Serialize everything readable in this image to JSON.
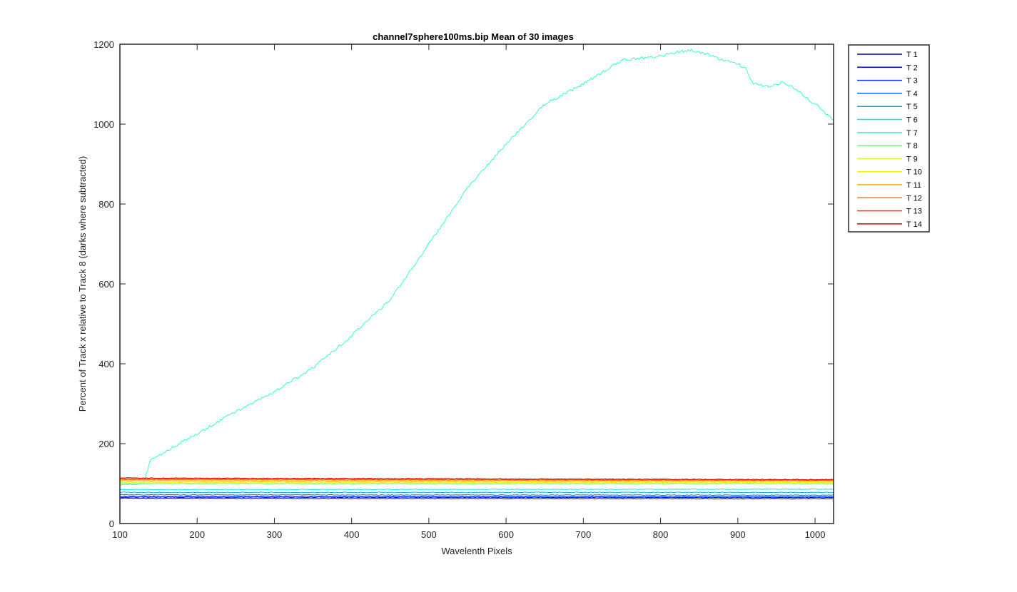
{
  "chart_data": {
    "type": "line",
    "title": "channel7sphere100ms.bip  Mean of 30 images",
    "xlabel": "Wavelenth Pixels",
    "ylabel": "Percent of Track x relative to Track 8 (darks where subtracted)",
    "xlim": [
      100,
      1024
    ],
    "ylim": [
      0,
      1200
    ],
    "xticks": [
      100,
      200,
      300,
      400,
      500,
      600,
      700,
      800,
      900,
      1000
    ],
    "yticks": [
      0,
      200,
      400,
      600,
      800,
      1000,
      1200
    ],
    "grid": false,
    "legend_position": "outside-top-right",
    "series": [
      {
        "name": "T 1",
        "color": "#0000aa",
        "x": [
          100,
          1024
        ],
        "y": [
          63,
          62
        ]
      },
      {
        "name": "T 2",
        "color": "#0000e8",
        "x": [
          100,
          1024
        ],
        "y": [
          66,
          65
        ]
      },
      {
        "name": "T 3",
        "color": "#0033ff",
        "x": [
          100,
          1024
        ],
        "y": [
          68,
          67
        ]
      },
      {
        "name": "T 4",
        "color": "#0070ff",
        "x": [
          100,
          1024
        ],
        "y": [
          72,
          71
        ]
      },
      {
        "name": "T 5",
        "color": "#00aaff",
        "x": [
          100,
          1024
        ],
        "y": [
          78,
          78
        ]
      },
      {
        "name": "T 6",
        "color": "#00e6ff",
        "x": [
          100,
          1024
        ],
        "y": [
          85,
          86
        ]
      },
      {
        "name": "T 7",
        "color": "#33ffcc",
        "x": [
          100,
          120,
          130,
          135,
          140,
          150,
          200,
          250,
          300,
          350,
          400,
          450,
          500,
          550,
          600,
          650,
          700,
          750,
          800,
          820,
          840,
          860,
          880,
          900,
          910,
          920,
          940,
          960,
          980,
          1000,
          1024
        ],
        "y": [
          97,
          98,
          100,
          130,
          160,
          170,
          225,
          280,
          330,
          390,
          470,
          560,
          700,
          840,
          950,
          1050,
          1100,
          1160,
          1170,
          1180,
          1185,
          1175,
          1160,
          1150,
          1140,
          1100,
          1095,
          1105,
          1080,
          1050,
          1010
        ]
      },
      {
        "name": "T 8",
        "color": "#77ff77",
        "x": [
          100,
          1024
        ],
        "y": [
          100,
          100
        ]
      },
      {
        "name": "T 9",
        "color": "#ccff33",
        "x": [
          100,
          1024
        ],
        "y": [
          102,
          102
        ]
      },
      {
        "name": "T 10",
        "color": "#ffee00",
        "x": [
          100,
          1024
        ],
        "y": [
          104,
          103
        ]
      },
      {
        "name": "T 11",
        "color": "#ffaa00",
        "x": [
          100,
          1024
        ],
        "y": [
          107,
          106
        ]
      },
      {
        "name": "T 12",
        "color": "#ff7700",
        "x": [
          100,
          1024
        ],
        "y": [
          110,
          108
        ]
      },
      {
        "name": "T 13",
        "color": "#ff3300",
        "x": [
          100,
          1024
        ],
        "y": [
          112,
          109
        ]
      },
      {
        "name": "T 14",
        "color": "#dd0000",
        "x": [
          100,
          1024
        ],
        "y": [
          114,
          110
        ]
      }
    ]
  }
}
